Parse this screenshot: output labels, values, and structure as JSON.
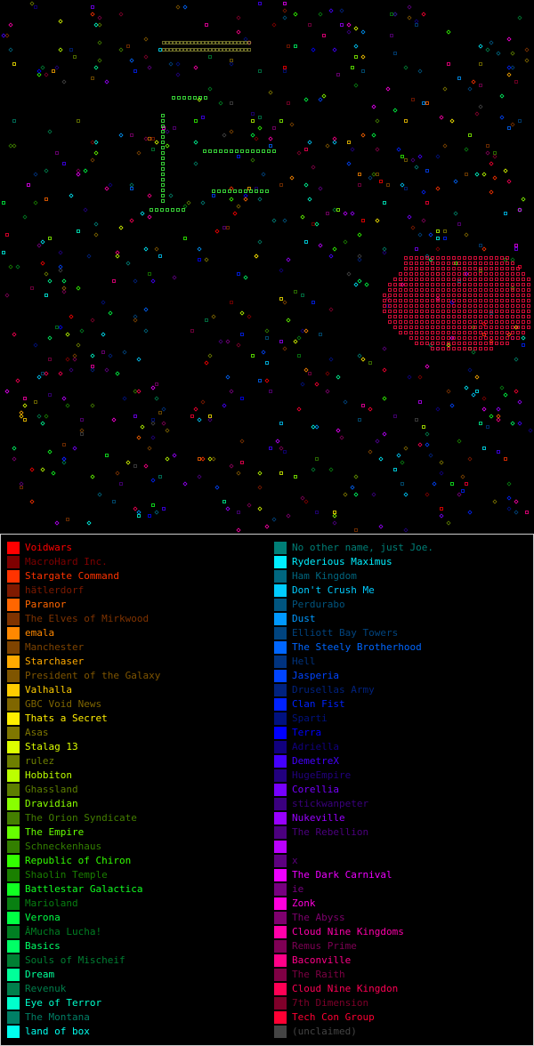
{
  "legend": {
    "columns": [
      [
        {
          "name": "Voidwars",
          "color": "#ff0000"
        },
        {
          "name": "MacroHard Inc.",
          "color": "#7f0000"
        },
        {
          "name": "Stargate Command",
          "color": "#ff3300"
        },
        {
          "name": "hätlerdorf",
          "color": "#7f1a00"
        },
        {
          "name": "Paranor",
          "color": "#ff6600"
        },
        {
          "name": "The Elves of Mirkwood",
          "color": "#7f3300"
        },
        {
          "name": "emala",
          "color": "#ff8800"
        },
        {
          "name": "Manchester",
          "color": "#7f4400"
        },
        {
          "name": "Starchaser",
          "color": "#ffaa00"
        },
        {
          "name": "President of the Galaxy",
          "color": "#7f5500"
        },
        {
          "name": "Valhalla",
          "color": "#ffcc00"
        },
        {
          "name": "GBC Void News",
          "color": "#7f6600"
        },
        {
          "name": "Thats a Secret",
          "color": "#ffee00"
        },
        {
          "name": "Asas",
          "color": "#7f7700"
        },
        {
          "name": "Stalag 13",
          "color": "#ddff00"
        },
        {
          "name": "rulez",
          "color": "#6e7f00"
        },
        {
          "name": "Hobbiton",
          "color": "#bbff00"
        },
        {
          "name": "Ghassland",
          "color": "#5d7f00"
        },
        {
          "name": "Dravidian",
          "color": "#88ff00"
        },
        {
          "name": "The Orion Syndicate",
          "color": "#447f00"
        },
        {
          "name": "The Empire",
          "color": "#66ff00"
        },
        {
          "name": "Schneckenhaus",
          "color": "#337f00"
        },
        {
          "name": "Republic of Chiron",
          "color": "#33ff00"
        },
        {
          "name": "Shaolin Temple",
          "color": "#1a7f00"
        },
        {
          "name": "Battlestar Galactica",
          "color": "#11ff22"
        },
        {
          "name": "Marioland",
          "color": "#087f11"
        },
        {
          "name": "Verona",
          "color": "#00ff44"
        },
        {
          "name": "ÂMucha Lucha!",
          "color": "#007f22"
        },
        {
          "name": "Basics",
          "color": "#00ff66"
        },
        {
          "name": "Souls of Mischeif",
          "color": "#007f33"
        },
        {
          "name": "Dream",
          "color": "#00ff99"
        },
        {
          "name": "Revenuk",
          "color": "#007f4c"
        },
        {
          "name": "Eye of Terror",
          "color": "#00ffcc"
        },
        {
          "name": "The Montana",
          "color": "#007f66"
        },
        {
          "name": "land of box",
          "color": "#00ffee"
        }
      ],
      [
        {
          "name": "No other name, just Joe.",
          "color": "#007f77"
        },
        {
          "name": "Ryderious Maximus",
          "color": "#00eeff"
        },
        {
          "name": "Ham Kingdom",
          "color": "#00667f"
        },
        {
          "name": "Don't Crush Me",
          "color": "#00ccff"
        },
        {
          "name": "Perdurabo",
          "color": "#00557f"
        },
        {
          "name": "Dust",
          "color": "#0099ff"
        },
        {
          "name": "Elliott Bay Towers",
          "color": "#00447f"
        },
        {
          "name": "The Steely Brotherhood",
          "color": "#0066ff"
        },
        {
          "name": "Hell",
          "color": "#00337f"
        },
        {
          "name": "Jasperia",
          "color": "#0044ff"
        },
        {
          "name": "Drusellas Army",
          "color": "#00227f"
        },
        {
          "name": "Clan Fist",
          "color": "#0022ff"
        },
        {
          "name": "Sparti",
          "color": "#00117f"
        },
        {
          "name": "Terra",
          "color": "#0000ff"
        },
        {
          "name": "Adriella",
          "color": "#11007f"
        },
        {
          "name": "DemetreX",
          "color": "#4400ff"
        },
        {
          "name": "HugeEmpire",
          "color": "#22007f"
        },
        {
          "name": "Corellia",
          "color": "#7700ff"
        },
        {
          "name": "stickwanpeter",
          "color": "#3b007f"
        },
        {
          "name": "Nukeville",
          "color": "#9900ff"
        },
        {
          "name": "The Rebellion",
          "color": "#4c007f"
        },
        {
          "name": null,
          "color": "#bb00ff"
        },
        {
          "name": "x",
          "color": "#5d007f"
        },
        {
          "name": "The Dark Carnival",
          "color": "#ee00ff"
        },
        {
          "name": "ie",
          "color": "#77007f"
        },
        {
          "name": "Zonk",
          "color": "#ff00dd"
        },
        {
          "name": "The Abyss",
          "color": "#7f006e"
        },
        {
          "name": "Cloud Nine Kingdoms",
          "color": "#ff00aa"
        },
        {
          "name": "Remus Prime",
          "color": "#7f0055"
        },
        {
          "name": "Baconville",
          "color": "#ff0088"
        },
        {
          "name": "The Raith",
          "color": "#7f0044"
        },
        {
          "name": "Cloud Nine Kingdon",
          "color": "#ff0055"
        },
        {
          "name": "7th Dimension",
          "color": "#7f002a"
        },
        {
          "name": "Tech Con Group",
          "color": "#ff0033"
        },
        {
          "name": "(unclaimed)",
          "color": "#444444"
        }
      ]
    ]
  }
}
